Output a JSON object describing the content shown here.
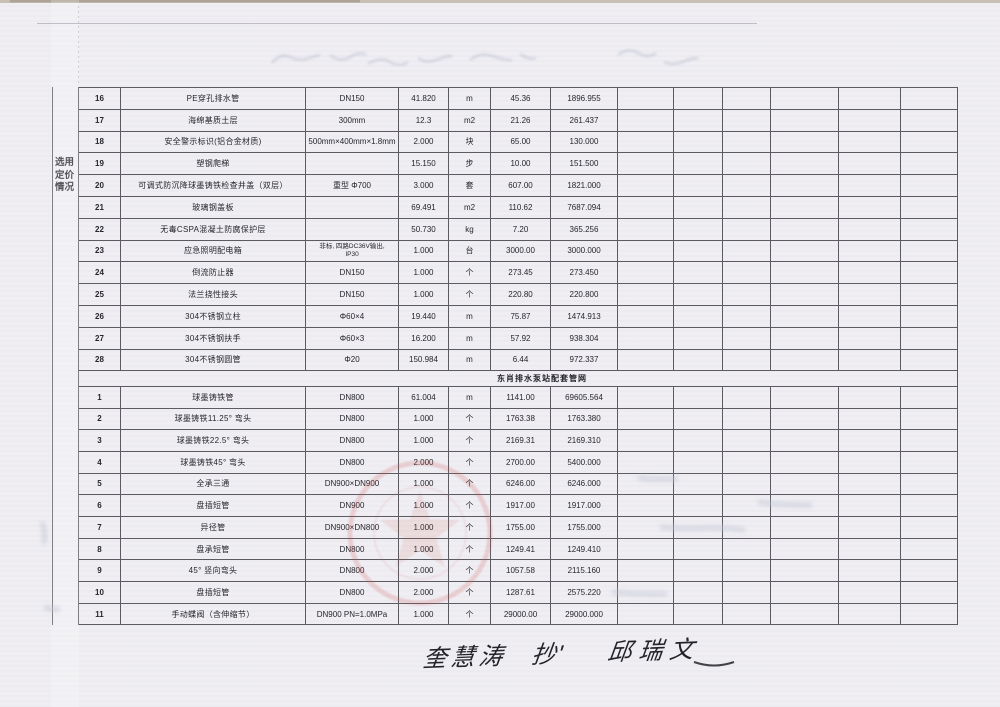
{
  "document": {
    "left_band_label": "选用定价情况",
    "ink_color": "#26262c",
    "stamp_color": "#cd504b",
    "handwriting": {
      "sig1": "奎慧涛",
      "note": "抄'",
      "sig2": "邱瑞文"
    }
  },
  "table": {
    "sections": [
      {
        "header": "",
        "rows": [
          {
            "no": "16",
            "name": "PE穿孔排水管",
            "spec": "DN150",
            "spec2": "",
            "qty": "41.820",
            "unit": "m",
            "price": "45.36",
            "total": "1896.955"
          },
          {
            "no": "17",
            "name": "海绵基质土层",
            "spec": "300mm",
            "spec2": "",
            "qty": "12.3",
            "unit": "m2",
            "price": "21.26",
            "total": "261.437"
          },
          {
            "no": "18",
            "name": "安全警示标识(铝合金材质)",
            "spec": "500mm×400mm×1.8mm",
            "spec2": "",
            "qty": "2.000",
            "unit": "块",
            "price": "65.00",
            "total": "130.000"
          },
          {
            "no": "19",
            "name": "塑钢爬梯",
            "spec": "",
            "spec2": "",
            "qty": "15.150",
            "unit": "步",
            "price": "10.00",
            "total": "151.500"
          },
          {
            "no": "20",
            "name": "可调式防沉降球墨铸铁检查井盖（双层）",
            "spec": "重型 Φ700",
            "spec2": "",
            "qty": "3.000",
            "unit": "套",
            "price": "607.00",
            "total": "1821.000"
          },
          {
            "no": "21",
            "name": "玻璃钢盖板",
            "spec": "",
            "spec2": "",
            "qty": "69.491",
            "unit": "m2",
            "price": "110.62",
            "total": "7687.094"
          },
          {
            "no": "22",
            "name": "无毒CSPA混凝土防腐保护层",
            "spec": "",
            "spec2": "",
            "qty": "50.730",
            "unit": "kg",
            "price": "7.20",
            "total": "365.256"
          },
          {
            "no": "23",
            "name": "应急照明配电箱",
            "spec": "非标, 四路DC36V输出,",
            "spec2": "IP30",
            "qty": "1.000",
            "unit": "台",
            "price": "3000.00",
            "total": "3000.000"
          },
          {
            "no": "24",
            "name": "倒流防止器",
            "spec": "DN150",
            "spec2": "",
            "qty": "1.000",
            "unit": "个",
            "price": "273.45",
            "total": "273.450"
          },
          {
            "no": "25",
            "name": "法兰挠性接头",
            "spec": "DN150",
            "spec2": "",
            "qty": "1.000",
            "unit": "个",
            "price": "220.80",
            "total": "220.800"
          },
          {
            "no": "26",
            "name": "304不锈钢立柱",
            "spec": "Φ60×4",
            "spec2": "",
            "qty": "19.440",
            "unit": "m",
            "price": "75.87",
            "total": "1474.913"
          },
          {
            "no": "27",
            "name": "304不锈钢扶手",
            "spec": "Φ60×3",
            "spec2": "",
            "qty": "16.200",
            "unit": "m",
            "price": "57.92",
            "total": "938.304"
          },
          {
            "no": "28",
            "name": "304不锈钢圆管",
            "spec": "Φ20",
            "spec2": "",
            "qty": "150.984",
            "unit": "m",
            "price": "6.44",
            "total": "972.337"
          }
        ]
      },
      {
        "header": "东肖排水泵站配套管网",
        "rows": [
          {
            "no": "1",
            "name": "球墨铸铁管",
            "spec": "DN800",
            "spec2": "",
            "qty": "61.004",
            "unit": "m",
            "price": "1141.00",
            "total": "69605.564"
          },
          {
            "no": "2",
            "name": "球墨铸铁11.25° 弯头",
            "spec": "DN800",
            "spec2": "",
            "qty": "1.000",
            "unit": "个",
            "price": "1763.38",
            "total": "1763.380"
          },
          {
            "no": "3",
            "name": "球墨铸铁22.5° 弯头",
            "spec": "DN800",
            "spec2": "",
            "qty": "1.000",
            "unit": "个",
            "price": "2169.31",
            "total": "2169.310"
          },
          {
            "no": "4",
            "name": "球墨铸铁45° 弯头",
            "spec": "DN800",
            "spec2": "",
            "qty": "2.000",
            "unit": "个",
            "price": "2700.00",
            "total": "5400.000"
          },
          {
            "no": "5",
            "name": "全承三通",
            "spec": "DN900×DN900",
            "spec2": "",
            "qty": "1.000",
            "unit": "个",
            "price": "6246.00",
            "total": "6246.000"
          },
          {
            "no": "6",
            "name": "盘插短管",
            "spec": "DN900",
            "spec2": "",
            "qty": "1.000",
            "unit": "个",
            "price": "1917.00",
            "total": "1917.000"
          },
          {
            "no": "7",
            "name": "异径管",
            "spec": "DN900×DN800",
            "spec2": "",
            "qty": "1.000",
            "unit": "个",
            "price": "1755.00",
            "total": "1755.000"
          },
          {
            "no": "8",
            "name": "盘承短管",
            "spec": "DN800",
            "spec2": "",
            "qty": "1.000",
            "unit": "个",
            "price": "1249.41",
            "total": "1249.410"
          },
          {
            "no": "9",
            "name": "45° 竖向弯头",
            "spec": "DN800",
            "spec2": "",
            "qty": "2.000",
            "unit": "个",
            "price": "1057.58",
            "total": "2115.160"
          },
          {
            "no": "10",
            "name": "盘插短管",
            "spec": "DN800",
            "spec2": "",
            "qty": "2.000",
            "unit": "个",
            "price": "1287.61",
            "total": "2575.220"
          },
          {
            "no": "11",
            "name": "手动蝶阀（含伸缩节）",
            "spec": "DN900  PN=1.0MPa",
            "spec2": "",
            "qty": "1.000",
            "unit": "个",
            "price": "29000.00",
            "total": "29000.000"
          }
        ]
      }
    ]
  }
}
